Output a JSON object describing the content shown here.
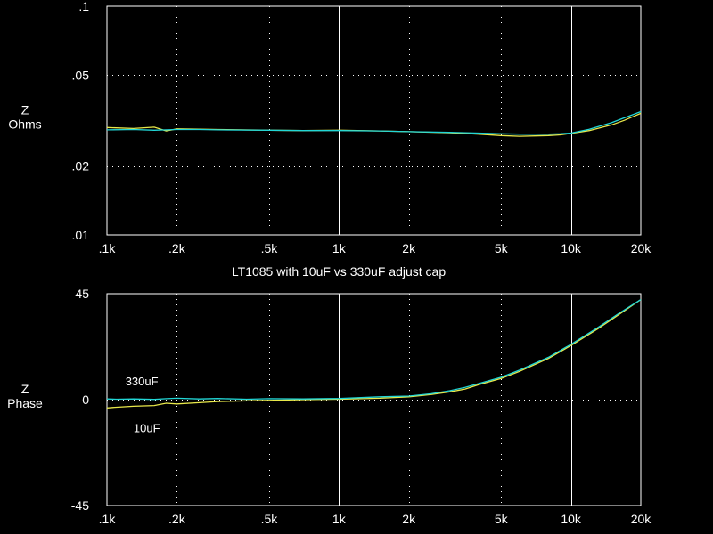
{
  "title": "LT1085 with 10uF vs 330uF adjust cap",
  "colors": {
    "background": "#000000",
    "frame": "#ffffff",
    "grid": "#ffffff",
    "series_10uF": "#e8e84a",
    "series_330uF": "#22d6d6"
  },
  "chart_data": [
    {
      "type": "line",
      "ylabel_lines": [
        "Z",
        "Ohms"
      ],
      "xscale": "log",
      "yscale": "log",
      "xlim": [
        100,
        20000
      ],
      "ylim": [
        0.01,
        0.1
      ],
      "grid": true,
      "x_ticks": [
        {
          "value": 100,
          "label": ".1k"
        },
        {
          "value": 200,
          "label": ".2k"
        },
        {
          "value": 500,
          "label": ".5k"
        },
        {
          "value": 1000,
          "label": "1k"
        },
        {
          "value": 2000,
          "label": "2k"
        },
        {
          "value": 5000,
          "label": "5k"
        },
        {
          "value": 10000,
          "label": "10k"
        },
        {
          "value": 20000,
          "label": "20k"
        }
      ],
      "y_ticks": [
        {
          "value": 0.1,
          "label": ".1"
        },
        {
          "value": 0.05,
          "label": ".05"
        },
        {
          "value": 0.02,
          "label": ".02"
        },
        {
          "value": 0.01,
          "label": ".01"
        }
      ],
      "series": [
        {
          "id": "10uF",
          "x": [
            100,
            130,
            160,
            180,
            200,
            250,
            300,
            500,
            700,
            1000,
            1500,
            2000,
            3000,
            4000,
            5000,
            6000,
            7000,
            8000,
            9000,
            10000,
            12000,
            15000,
            17000,
            20000
          ],
          "y": [
            0.0295,
            0.0292,
            0.0296,
            0.0285,
            0.0291,
            0.029,
            0.0289,
            0.0287,
            0.0286,
            0.0287,
            0.0285,
            0.0283,
            0.028,
            0.0276,
            0.0272,
            0.027,
            0.0271,
            0.0272,
            0.0274,
            0.0278,
            0.0286,
            0.0303,
            0.0317,
            0.034
          ]
        },
        {
          "id": "330uF",
          "x": [
            100,
            130,
            160,
            180,
            200,
            250,
            300,
            500,
            700,
            1000,
            1500,
            2000,
            3000,
            4000,
            5000,
            6000,
            7000,
            8000,
            9000,
            10000,
            12000,
            15000,
            17000,
            20000
          ],
          "y": [
            0.0288,
            0.0289,
            0.0287,
            0.0288,
            0.0289,
            0.0289,
            0.0288,
            0.0287,
            0.0286,
            0.0286,
            0.0285,
            0.0283,
            0.0281,
            0.0279,
            0.0277,
            0.0276,
            0.0276,
            0.0276,
            0.0277,
            0.0279,
            0.029,
            0.031,
            0.0325,
            0.0346
          ]
        }
      ]
    },
    {
      "type": "line",
      "ylabel_lines": [
        "Z",
        "Phase"
      ],
      "xscale": "log",
      "xlim": [
        100,
        20000
      ],
      "ylim": [
        -45,
        45
      ],
      "grid": true,
      "x_ticks": [
        {
          "value": 100,
          "label": ".1k"
        },
        {
          "value": 200,
          "label": ".2k"
        },
        {
          "value": 500,
          "label": ".5k"
        },
        {
          "value": 1000,
          "label": "1k"
        },
        {
          "value": 2000,
          "label": "2k"
        },
        {
          "value": 5000,
          "label": "5k"
        },
        {
          "value": 10000,
          "label": "10k"
        },
        {
          "value": 20000,
          "label": "20k"
        }
      ],
      "y_ticks": [
        {
          "value": 45,
          "label": "45"
        },
        {
          "value": 0,
          "label": "0"
        },
        {
          "value": -45,
          "label": "-45"
        }
      ],
      "annotations": [
        {
          "text": "330uF",
          "x": 118,
          "y": 8
        },
        {
          "text": "10uF",
          "x": 128,
          "y": -12
        }
      ],
      "series": [
        {
          "id": "10uF",
          "x": [
            100,
            110,
            130,
            160,
            180,
            200,
            250,
            300,
            400,
            500,
            700,
            1000,
            1500,
            2000,
            2500,
            3000,
            3500,
            4000,
            5000,
            6000,
            8000,
            10000,
            13000,
            16000,
            20000
          ],
          "y": [
            -3.5,
            -3.2,
            -2.8,
            -2.5,
            -1.5,
            -1.8,
            -1.3,
            -0.8,
            -0.5,
            -0.3,
            0,
            0.2,
            0.6,
            1.2,
            2.2,
            3.3,
            4.5,
            6.3,
            9,
            12,
            17.5,
            23,
            30,
            36,
            42.5
          ]
        },
        {
          "id": "330uF",
          "x": [
            100,
            110,
            130,
            160,
            180,
            200,
            250,
            300,
            400,
            500,
            700,
            1000,
            1500,
            2000,
            2500,
            3000,
            3500,
            4000,
            5000,
            6000,
            8000,
            10000,
            13000,
            16000,
            20000
          ],
          "y": [
            0.3,
            0.2,
            0.3,
            0.1,
            0.4,
            0.6,
            0.3,
            0.5,
            0.2,
            0.4,
            0.3,
            0.5,
            1.2,
            1.5,
            2.5,
            3.8,
            5.2,
            6.8,
            9.5,
            12.5,
            18,
            23.5,
            30.5,
            36.5,
            42.5
          ]
        }
      ]
    }
  ]
}
